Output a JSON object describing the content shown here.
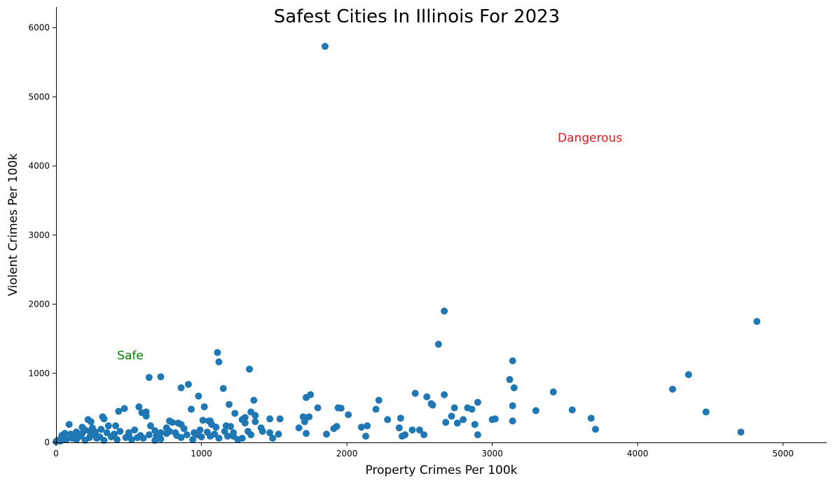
{
  "chart_data": {
    "type": "scatter",
    "title": "Safest Cities In Illinois For 2023",
    "xlabel": "Property Crimes Per 100k",
    "ylabel": "Violent Crimes Per 100k",
    "xlim": [
      0,
      5300
    ],
    "ylim": [
      0,
      6300
    ],
    "x_ticks": [
      0,
      1000,
      2000,
      3000,
      4000,
      5000
    ],
    "y_ticks": [
      0,
      1000,
      2000,
      3000,
      4000,
      5000,
      6000
    ],
    "x_tick_labels": [
      "0",
      "1000",
      "2000",
      "3000",
      "4000",
      "5000"
    ],
    "y_tick_labels": [
      "0",
      "1000",
      "2000",
      "3000",
      "4000",
      "5000",
      "6000"
    ],
    "grid": false,
    "marker_color": "#1f77b4",
    "annotations": [
      {
        "text": "Safe",
        "x": 420,
        "y": 1200,
        "color": "#008000"
      },
      {
        "text": "Dangerous",
        "x": 3450,
        "y": 4350,
        "color": "#e41a1c"
      }
    ],
    "points": [
      [
        1850,
        5730
      ],
      [
        2670,
        1900
      ],
      [
        4820,
        1750
      ],
      [
        2630,
        1420
      ],
      [
        1110,
        1300
      ],
      [
        3140,
        1180
      ],
      [
        1120,
        1165
      ],
      [
        1330,
        1060
      ],
      [
        4350,
        980
      ],
      [
        640,
        940
      ],
      [
        720,
        950
      ],
      [
        3120,
        910
      ],
      [
        910,
        840
      ],
      [
        860,
        790
      ],
      [
        1150,
        780
      ],
      [
        4240,
        770
      ],
      [
        3150,
        790
      ],
      [
        3420,
        730
      ],
      [
        2470,
        710
      ],
      [
        2670,
        690
      ],
      [
        1750,
        690
      ],
      [
        980,
        670
      ],
      [
        1720,
        650
      ],
      [
        2550,
        660
      ],
      [
        2220,
        610
      ],
      [
        1360,
        610
      ],
      [
        2580,
        560
      ],
      [
        2590,
        540
      ],
      [
        2900,
        580
      ],
      [
        1190,
        550
      ],
      [
        570,
        515
      ],
      [
        1020,
        515
      ],
      [
        1800,
        500
      ],
      [
        1960,
        495
      ],
      [
        1940,
        500
      ],
      [
        2830,
        500
      ],
      [
        2860,
        480
      ],
      [
        2200,
        480
      ],
      [
        2740,
        500
      ],
      [
        3300,
        460
      ],
      [
        3550,
        470
      ],
      [
        930,
        480
      ],
      [
        470,
        490
      ],
      [
        430,
        450
      ],
      [
        1340,
        440
      ],
      [
        4470,
        440
      ],
      [
        590,
        430
      ],
      [
        1700,
        370
      ],
      [
        1740,
        370
      ],
      [
        2010,
        400
      ],
      [
        3140,
        530
      ],
      [
        620,
        440
      ],
      [
        2720,
        380
      ],
      [
        1370,
        390
      ],
      [
        620,
        380
      ],
      [
        1230,
        420
      ],
      [
        1300,
        360
      ],
      [
        1470,
        340
      ],
      [
        3680,
        350
      ],
      [
        2800,
        330
      ],
      [
        2280,
        330
      ],
      [
        1540,
        340
      ],
      [
        1280,
        330
      ],
      [
        3020,
        340
      ],
      [
        3000,
        330
      ],
      [
        1050,
        310
      ],
      [
        3140,
        310
      ],
      [
        2680,
        290
      ],
      [
        2760,
        280
      ],
      [
        780,
        310
      ],
      [
        1710,
        300
      ],
      [
        1370,
        300
      ],
      [
        220,
        330
      ],
      [
        330,
        340
      ],
      [
        320,
        370
      ],
      [
        240,
        300
      ],
      [
        90,
        260
      ],
      [
        410,
        240
      ],
      [
        860,
        260
      ],
      [
        1070,
        260
      ],
      [
        1300,
        280
      ],
      [
        2370,
        350
      ],
      [
        2880,
        260
      ],
      [
        2140,
        240
      ],
      [
        2100,
        220
      ],
      [
        2360,
        210
      ],
      [
        1930,
        230
      ],
      [
        1670,
        210
      ],
      [
        1910,
        200
      ],
      [
        1410,
        210
      ],
      [
        1100,
        220
      ],
      [
        1170,
        240
      ],
      [
        3710,
        190
      ],
      [
        2450,
        180
      ],
      [
        2500,
        180
      ],
      [
        4710,
        150
      ],
      [
        650,
        240
      ],
      [
        540,
        180
      ],
      [
        440,
        160
      ],
      [
        880,
        200
      ],
      [
        990,
        180
      ],
      [
        780,
        160
      ],
      [
        680,
        170
      ],
      [
        250,
        210
      ],
      [
        180,
        220
      ],
      [
        200,
        180
      ],
      [
        140,
        150
      ],
      [
        60,
        130
      ],
      [
        40,
        100
      ],
      [
        100,
        120
      ],
      [
        150,
        100
      ],
      [
        270,
        150
      ],
      [
        350,
        140
      ],
      [
        400,
        120
      ],
      [
        500,
        140
      ],
      [
        720,
        140
      ],
      [
        760,
        130
      ],
      [
        950,
        140
      ],
      [
        1040,
        150
      ],
      [
        1160,
        160
      ],
      [
        1220,
        140
      ],
      [
        1320,
        160
      ],
      [
        1470,
        140
      ],
      [
        1530,
        120
      ],
      [
        1720,
        130
      ],
      [
        1860,
        120
      ],
      [
        2130,
        90
      ],
      [
        2400,
        110
      ],
      [
        2530,
        110
      ],
      [
        2900,
        110
      ],
      [
        2380,
        90
      ],
      [
        1490,
        60
      ],
      [
        1220,
        90
      ],
      [
        1060,
        90
      ],
      [
        970,
        110
      ],
      [
        830,
        100
      ],
      [
        690,
        90
      ],
      [
        580,
        100
      ],
      [
        480,
        70
      ],
      [
        380,
        80
      ],
      [
        300,
        80
      ],
      [
        230,
        70
      ],
      [
        170,
        90
      ],
      [
        110,
        60
      ],
      [
        70,
        40
      ],
      [
        30,
        20
      ],
      [
        0,
        10
      ],
      [
        10,
        30
      ],
      [
        200,
        30
      ],
      [
        330,
        30
      ],
      [
        520,
        40
      ],
      [
        720,
        50
      ],
      [
        940,
        40
      ],
      [
        1120,
        60
      ],
      [
        1250,
        40
      ],
      [
        1280,
        60
      ],
      [
        680,
        30
      ],
      [
        860,
        70
      ],
      [
        600,
        60
      ],
      [
        420,
        40
      ],
      [
        140,
        40
      ],
      [
        260,
        120
      ],
      [
        180,
        130
      ],
      [
        230,
        160
      ],
      [
        310,
        190
      ],
      [
        360,
        240
      ],
      [
        500,
        100
      ],
      [
        640,
        110
      ],
      [
        820,
        140
      ],
      [
        900,
        110
      ],
      [
        1000,
        80
      ],
      [
        1180,
        90
      ],
      [
        1340,
        110
      ],
      [
        1420,
        160
      ],
      [
        1090,
        120
      ],
      [
        760,
        210
      ],
      [
        800,
        290
      ],
      [
        840,
        280
      ],
      [
        560,
        70
      ],
      [
        700,
        110
      ],
      [
        1200,
        230
      ],
      [
        1010,
        320
      ],
      [
        1060,
        310
      ],
      [
        280,
        60
      ],
      [
        120,
        110
      ]
    ]
  }
}
